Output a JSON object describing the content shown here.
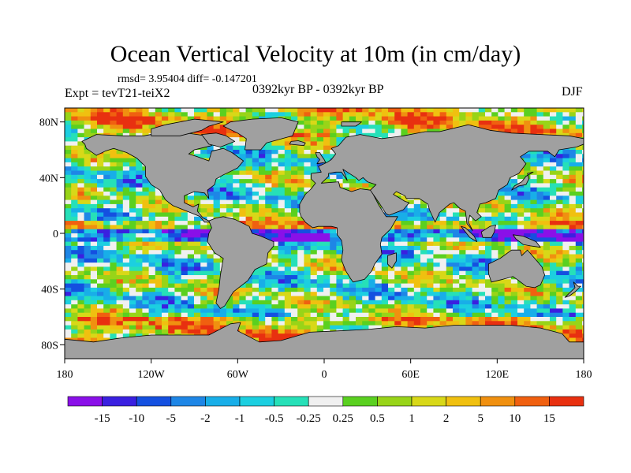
{
  "chart_data": {
    "type": "heatmap",
    "title": "Ocean Vertical Velocity at 10m (in cm/day)",
    "stats_text": "rmsd= 3.95404 diff= -0.147201",
    "experiment_label": "Expt = tevT21-teiX2",
    "period_label": "0392kyr BP - 0392kyr BP",
    "season_label": "DJF",
    "x_axis": {
      "range": [
        -180,
        180
      ],
      "ticks": [
        -180,
        -120,
        -60,
        0,
        60,
        120,
        180
      ],
      "tick_labels": [
        "180",
        "120W",
        "60W",
        "0",
        "60E",
        "120E",
        "180"
      ]
    },
    "y_axis": {
      "range": [
        -90,
        90
      ],
      "ticks": [
        80,
        40,
        0,
        -40,
        -80
      ],
      "tick_labels": [
        "80N",
        "40N",
        "0",
        "40S",
        "80S"
      ]
    },
    "colorbar": {
      "levels": [
        "-15",
        "-10",
        "-5",
        "-2",
        "-1",
        "-0.5",
        "-0.25",
        "0.25",
        "0.5",
        "1",
        "2",
        "5",
        "10",
        "15"
      ],
      "colors": [
        "#8a10e8",
        "#3a20e0",
        "#1450e0",
        "#1e86e6",
        "#18aee8",
        "#1ccfe0",
        "#26e0b8",
        "#f0f0f0",
        "#5ad020",
        "#98d418",
        "#d8d818",
        "#f0c010",
        "#f09010",
        "#f06010",
        "#e83010"
      ]
    },
    "land_color": "#a0a0a0"
  }
}
